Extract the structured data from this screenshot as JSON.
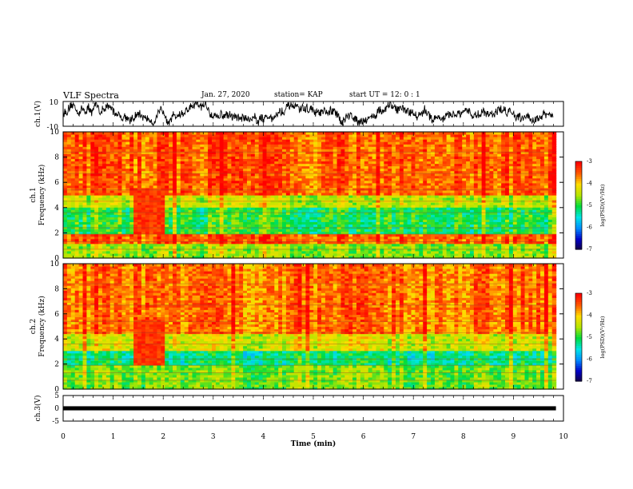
{
  "header": {
    "title": "VLF Spectra",
    "date": "Jan. 27, 2020",
    "station": "station= KAP",
    "start_ut": "start UT =  12: 0  : 1"
  },
  "chart_data": [
    {
      "type": "line",
      "title": "",
      "ylabel": "ch.1(V)",
      "xlim": [
        0,
        10
      ],
      "ylim": [
        -10,
        10
      ],
      "yticks": [
        "10",
        "-10"
      ],
      "note": "raw waveform, noisy signal roughly between -8 and 8 V"
    },
    {
      "type": "heatmap",
      "ylabel": "ch.1\nFrequency (kHz)",
      "ylabel_lines": [
        "ch.1",
        "Frequency (kHz)"
      ],
      "xlim": [
        0,
        10
      ],
      "ylim": [
        0,
        10
      ],
      "yticks": [
        "0",
        "2",
        "4",
        "6",
        "8",
        "10"
      ],
      "colorbar": {
        "label": "log(PSD)(V²/Hz)",
        "range": [
          -7,
          -3
        ],
        "ticks": [
          "-3",
          "-4",
          "-5",
          "-6",
          "-7"
        ]
      },
      "bands": [
        {
          "from": 0,
          "to": 1.2,
          "level": -4.6
        },
        {
          "from": 1.2,
          "to": 2.0,
          "level": -3.5
        },
        {
          "from": 2.0,
          "to": 4.0,
          "level": -5.0
        },
        {
          "from": 4.0,
          "to": 5.0,
          "level": -4.4
        },
        {
          "from": 5.0,
          "to": 10,
          "level": -3.5
        }
      ]
    },
    {
      "type": "heatmap",
      "ylabel": "ch.2\nFrequency (kHz)",
      "ylabel_lines": [
        "ch.2",
        "Frequency (kHz)"
      ],
      "xlim": [
        0,
        10
      ],
      "ylim": [
        0,
        10
      ],
      "yticks": [
        "0",
        "2",
        "4",
        "6",
        "8",
        "10"
      ],
      "colorbar": {
        "label": "log(PSD)(V²/Hz)",
        "range": [
          -7,
          -3
        ],
        "ticks": [
          "-3",
          "-4",
          "-5",
          "-6",
          "-7"
        ]
      },
      "bands": [
        {
          "from": 0,
          "to": 2.0,
          "level": -4.7
        },
        {
          "from": 2.0,
          "to": 3.0,
          "level": -5.2
        },
        {
          "from": 3.0,
          "to": 4.5,
          "level": -4.3
        },
        {
          "from": 4.5,
          "to": 10,
          "level": -3.6
        }
      ]
    },
    {
      "type": "line",
      "ylabel": "ch.3(V)",
      "xlim": [
        0,
        10
      ],
      "ylim": [
        -5,
        5
      ],
      "yticks": [
        "5",
        "0",
        "-5"
      ],
      "xlabel": "Time (min)",
      "xticks": [
        "0",
        "1",
        "2",
        "3",
        "4",
        "5",
        "6",
        "7",
        "8",
        "9",
        "10"
      ],
      "note": "flat thick band near 0 V"
    }
  ]
}
